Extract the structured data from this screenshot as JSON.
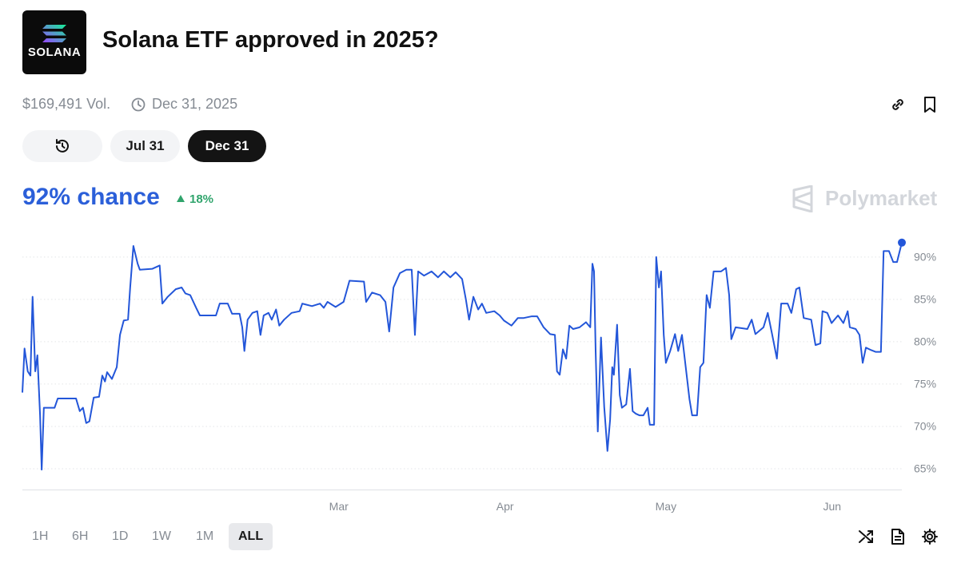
{
  "header": {
    "logo_text": "SOLANA",
    "title": "Solana ETF approved in 2025?",
    "volume": "$169,491 Vol.",
    "end_date": "Dec 31, 2025"
  },
  "date_tabs": [
    "Jul 31",
    "Dec 31"
  ],
  "active_tab": "Dec 31",
  "chance": "92% chance",
  "change": "18%",
  "brand": "Polymarket",
  "range_buttons": [
    "1H",
    "6H",
    "1D",
    "1W",
    "1M",
    "ALL"
  ],
  "active_range": "ALL",
  "chart_data": {
    "type": "line",
    "color": "#2356d9",
    "grid": true,
    "x": [
      0,
      0.4,
      1,
      1.5,
      1.9,
      2.4,
      2.8,
      3.3,
      3.6,
      4,
      6,
      6.6,
      10,
      10.7,
      11.3,
      11.9,
      12.5,
      13.3,
      14.3,
      14.9,
      15.4,
      15.8,
      16.7,
      17.6,
      18.2,
      18.9,
      19.7,
      20.1,
      20.7,
      21.5,
      21.9,
      24.2,
      25.6,
      26.1,
      27.1,
      28.6,
      29.7,
      30.4,
      31.3,
      32.4,
      33.1,
      36.1,
      36.8,
      38.3,
      39.1,
      40.5,
      41,
      41.4,
      42,
      42.9,
      43.8,
      44.4,
      45,
      45.9,
      46.5,
      47.3,
      47.9,
      48.8,
      50.2,
      51.7,
      52.2,
      54,
      55.5,
      56.2,
      56.9,
      58.4,
      59.9,
      61,
      63.7,
      64.1,
      65.2,
      66.7,
      67.7,
      68.4,
      69.2,
      70.4,
      71.6,
      72.6,
      73.2,
      73.8,
      74.9,
      76.3,
      77.5,
      78.6,
      79.8,
      80.8,
      82,
      82.7,
      83.3,
      84.1,
      85,
      85.7,
      86.5,
      88,
      89,
      89.8,
      91.2,
      92.4,
      93.5,
      95,
      96,
      97.2,
      98.4,
      99.3,
      99.7,
      100.2,
      100.8,
      101.4,
      102,
      102.7,
      103.9,
      105.1,
      105.9,
      106.3,
      106.6,
      106.9,
      107.3,
      107.9,
      108.5,
      109.1,
      109.6,
      110,
      110.3,
      110.9,
      111.4,
      111.8,
      112.6,
      113.3,
      113.8,
      114.4,
      115.1,
      115.8,
      116.6,
      117,
      117.8,
      118.2,
      118.7,
      119.1,
      119.6,
      120,
      120.8,
      121.7,
      122.3,
      123,
      123.7,
      124.4,
      124.9,
      125.8,
      126.4,
      127,
      127.6,
      128.2,
      128.9,
      130.3,
      131.2,
      131.8,
      132.2,
      133,
      135.2,
      136,
      136.7,
      138.2,
      139,
      139.8,
      140.7,
      141.5,
      142.7,
      143.4,
      144.3,
      144.9,
      145.7,
      147.1,
      147.9,
      148.8,
      149.2,
      150.1,
      150.9,
      152.1,
      153.1,
      153.9,
      154.3,
      155.4,
      156.1,
      156.7,
      157.3,
      158.3,
      159.1,
      160.1,
      160.6,
      161.6,
      162.4,
      163.1,
      164
    ],
    "values": [
      74,
      79.2,
      76.5,
      76,
      85.3,
      76.5,
      78.4,
      71.3,
      64.9,
      72.2,
      72.2,
      73.3,
      73.3,
      71.8,
      72.2,
      70.4,
      70.6,
      73.4,
      73.5,
      76,
      75.3,
      76.4,
      75.6,
      77,
      80.8,
      82.5,
      82.6,
      86.4,
      91.3,
      89.2,
      88.5,
      88.6,
      89,
      84.5,
      85.3,
      86.2,
      86.4,
      85.7,
      85.5,
      84,
      83.1,
      83.1,
      84.5,
      84.5,
      83.3,
      83.3,
      81.7,
      78.9,
      82.6,
      83.4,
      83.6,
      80.8,
      83.1,
      83.4,
      82.6,
      83.8,
      81.9,
      82.6,
      83.4,
      83.6,
      84.5,
      84.2,
      84.5,
      84,
      84.7,
      84.1,
      84.7,
      87.2,
      87.1,
      84.7,
      85.8,
      85.5,
      84.7,
      81.2,
      86.4,
      88.1,
      88.5,
      88.5,
      80.8,
      88.3,
      87.8,
      88.3,
      87.6,
      88.3,
      87.6,
      88.2,
      87.4,
      85,
      82.6,
      85.3,
      83.8,
      84.5,
      83.4,
      83.6,
      83.1,
      82.5,
      81.9,
      82.8,
      82.8,
      83,
      83,
      81.7,
      80.9,
      80.8,
      76.5,
      76.1,
      79.1,
      78,
      81.9,
      81.5,
      81.7,
      82.3,
      81.7,
      89.2,
      88.3,
      78.9,
      69.4,
      80.5,
      72.3,
      67.1,
      70.8,
      77,
      76.1,
      82,
      73.7,
      72.2,
      72.6,
      76.8,
      71.8,
      71.5,
      71.3,
      71.3,
      72.2,
      70.2,
      70.2,
      90,
      86.4,
      88.3,
      80.8,
      77.5,
      78.9,
      80.9,
      78.9,
      80.8,
      77,
      73.2,
      71.3,
      71.3,
      77,
      77.5,
      85.5,
      84,
      88.3,
      88.3,
      88.7,
      85.5,
      80.3,
      81.7,
      81.5,
      82.6,
      80.9,
      81.7,
      83.4,
      80.9,
      78,
      84.5,
      84.5,
      83.4,
      86.2,
      86.4,
      82.8,
      82.6,
      79.6,
      79.8,
      83.6,
      83.4,
      82.2,
      83.1,
      82.2,
      83.6,
      81.7,
      81.5,
      80.8,
      77.5,
      79.3,
      79,
      78.8,
      78.8,
      90.7,
      90.7,
      89.4,
      89.4,
      91.7
    ],
    "xlim": [
      0,
      164
    ],
    "xticks": [
      {
        "value": 59,
        "label": "Mar"
      },
      {
        "value": 90,
        "label": "Apr"
      },
      {
        "value": 120,
        "label": "May"
      },
      {
        "value": 151,
        "label": "Jun"
      }
    ],
    "ylim": [
      62.5,
      93
    ],
    "yticks": [
      {
        "value": 65,
        "label": "65%"
      },
      {
        "value": 70,
        "label": "70%"
      },
      {
        "value": 75,
        "label": "75%"
      },
      {
        "value": 80,
        "label": "80%"
      },
      {
        "value": 85,
        "label": "85%"
      },
      {
        "value": 90,
        "label": "90%"
      }
    ]
  }
}
